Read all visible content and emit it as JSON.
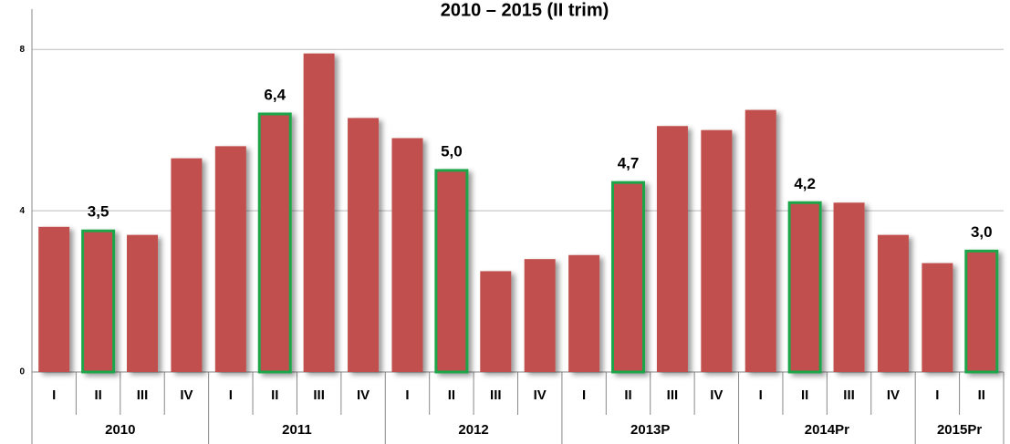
{
  "chart_data": {
    "type": "bar",
    "title": "2010 – 2015 (II trim)",
    "categories": [
      "I",
      "II",
      "III",
      "IV",
      "I",
      "II",
      "III",
      "IV",
      "I",
      "II",
      "III",
      "IV",
      "I",
      "II",
      "III",
      "IV",
      "I",
      "II",
      "III",
      "IV",
      "I",
      "II"
    ],
    "groups": [
      {
        "label": "2010",
        "size": 4
      },
      {
        "label": "2011",
        "size": 4
      },
      {
        "label": "2012",
        "size": 4
      },
      {
        "label": "2013P",
        "size": 4
      },
      {
        "label": "2014Pr",
        "size": 4
      },
      {
        "label": "2015Pr",
        "size": 2
      }
    ],
    "values": [
      3.6,
      3.5,
      3.4,
      5.3,
      5.6,
      6.4,
      7.9,
      6.3,
      5.8,
      5.0,
      2.5,
      2.8,
      2.9,
      4.7,
      6.1,
      6.0,
      6.5,
      4.2,
      4.2,
      3.4,
      2.7,
      3.0
    ],
    "value_labels": [
      null,
      "3,5",
      null,
      null,
      null,
      "6,4",
      null,
      null,
      null,
      "5,0",
      null,
      null,
      null,
      "4,7",
      null,
      null,
      null,
      "4,2",
      null,
      null,
      null,
      "3,0"
    ],
    "color": "#c0504d",
    "highlight_color": "#1fa64a",
    "ylim": [
      0,
      9
    ],
    "yticks": [
      0,
      4,
      8
    ],
    "grid": true
  }
}
